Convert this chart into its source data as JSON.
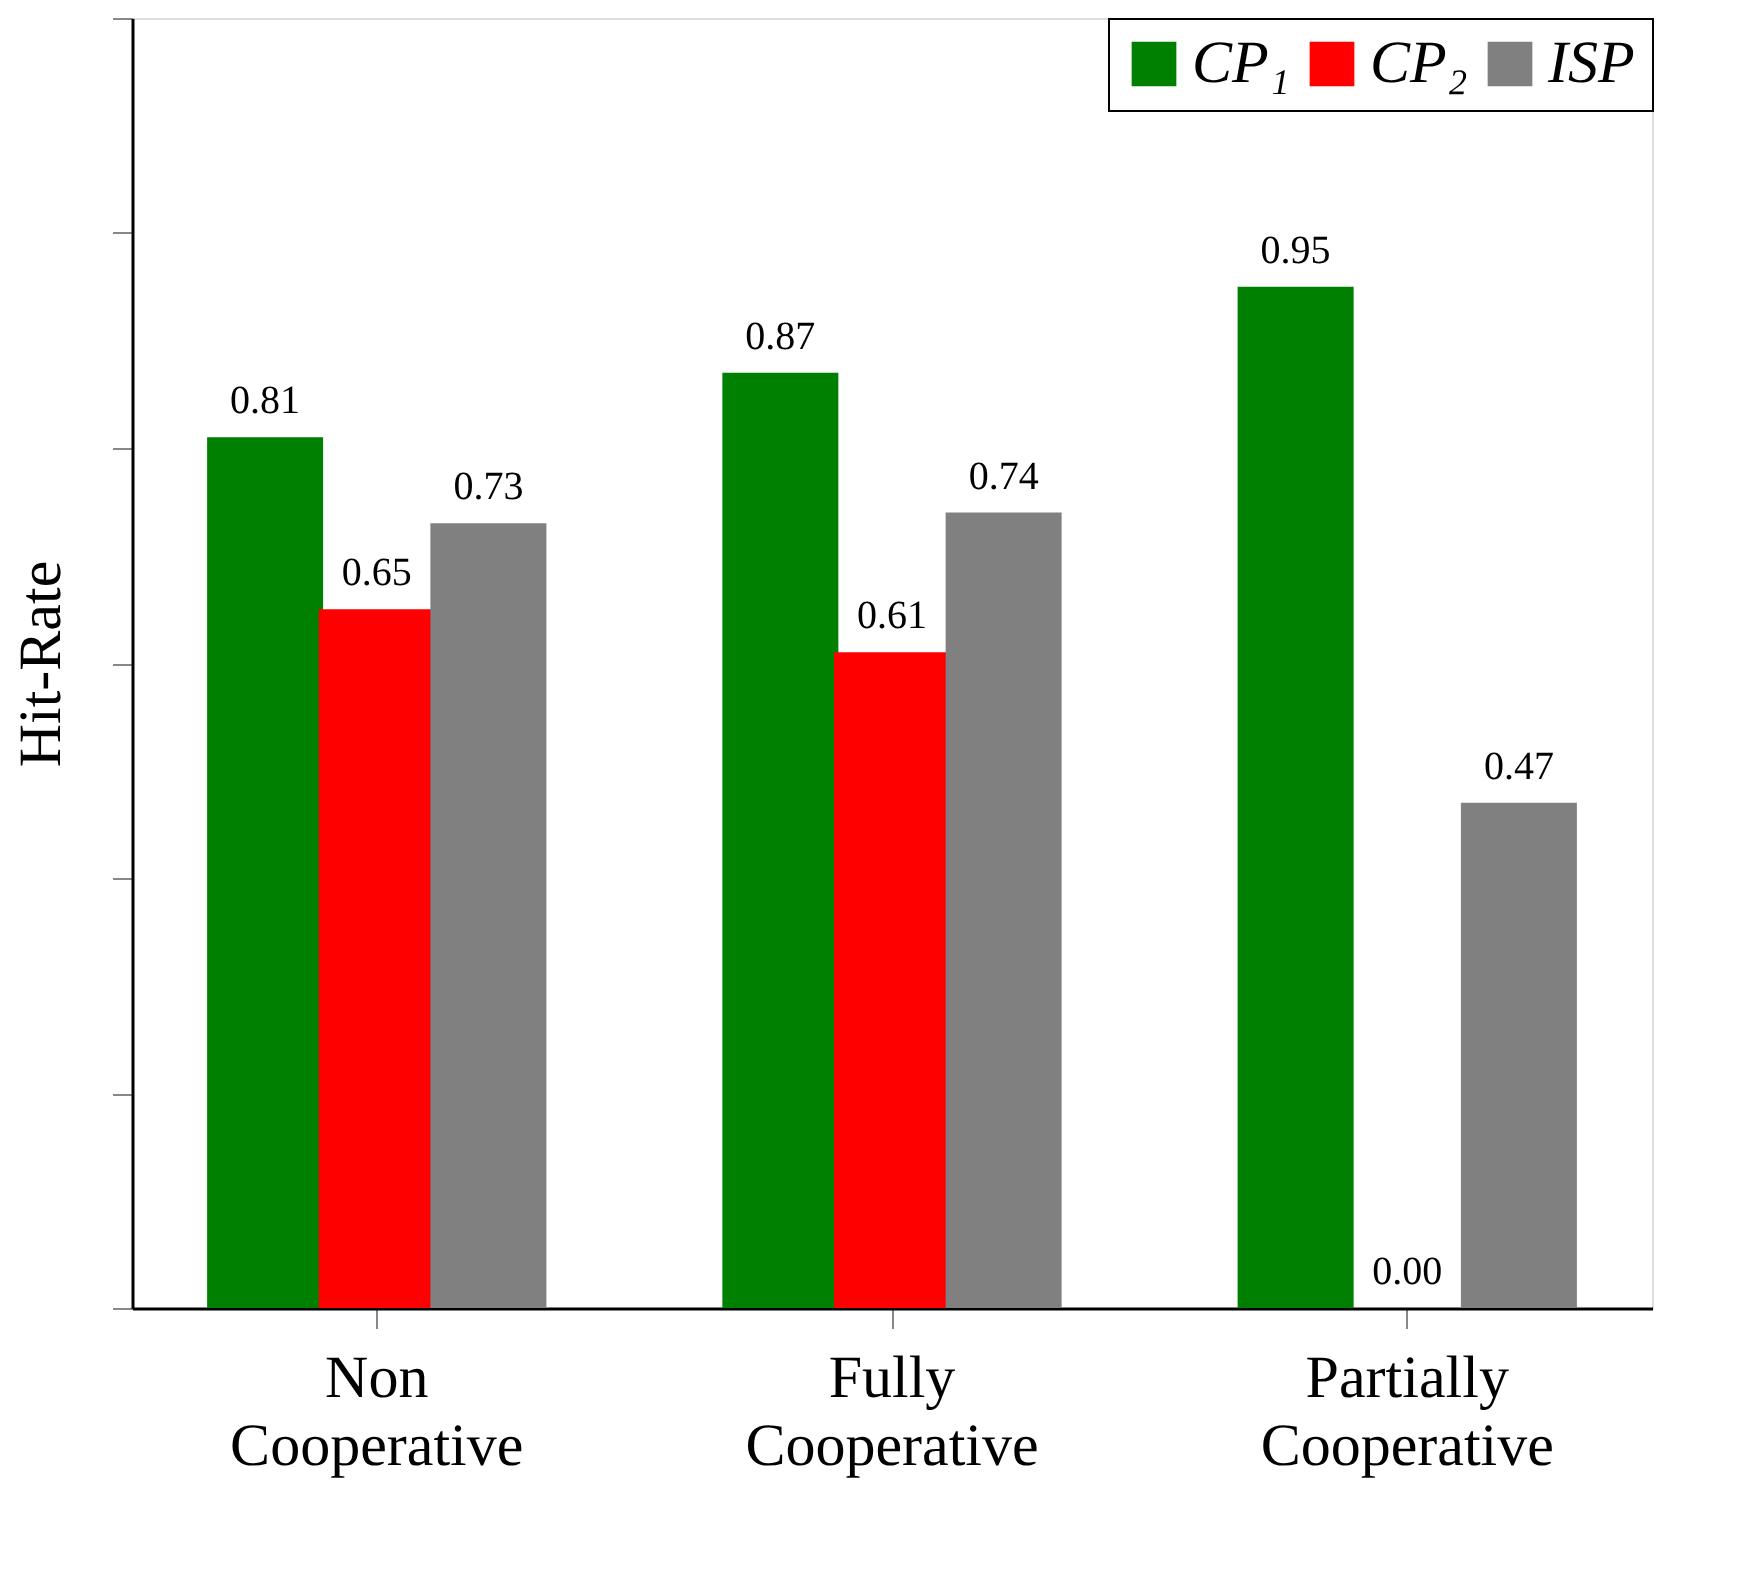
{
  "chart_data": {
    "type": "bar",
    "ylabel": "Hit-Rate",
    "categories": [
      "Non Cooperative",
      "Fully Cooperative",
      "Partially Cooperative"
    ],
    "series": [
      {
        "name": "CP₁",
        "color": "#008000",
        "values": [
          0.81,
          0.87,
          0.95
        ],
        "value_labels": [
          "0.81",
          "0.87",
          "0.95"
        ]
      },
      {
        "name": "CP₂",
        "color": "#ff0000",
        "values": [
          0.65,
          0.61,
          0.0
        ],
        "value_labels": [
          "0.65",
          "0.61",
          "0.00"
        ]
      },
      {
        "name": "ISP",
        "color": "#808080",
        "values": [
          0.73,
          0.74,
          0.47
        ],
        "value_labels": [
          "0.73",
          "0.74",
          "0.47"
        ]
      }
    ],
    "ylim": [
      0,
      1.2
    ],
    "yticks": [
      {
        "value": 0,
        "label": null
      },
      {
        "value": 0.2,
        "label": null
      },
      {
        "value": 0.4,
        "label": null
      },
      {
        "value": 0.6,
        "label": null
      },
      {
        "value": 0.8,
        "label": null
      },
      {
        "value": 1.0,
        "label": null
      },
      {
        "value": 1.2,
        "label": null
      }
    ],
    "tick_labels": "x",
    "grid": false,
    "legend": "top right"
  }
}
